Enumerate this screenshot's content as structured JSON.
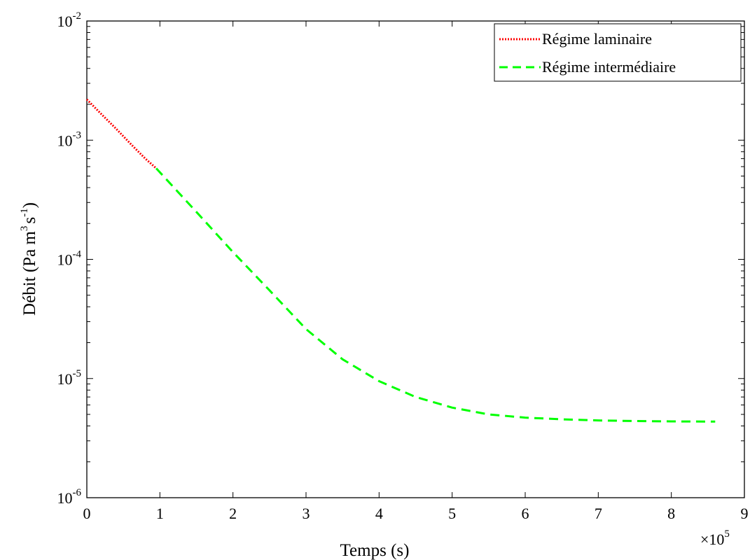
{
  "chart_data": {
    "type": "line",
    "xlabel": "Temps (s)",
    "ylabel": {
      "base": "Débit (Pa m",
      "exp1": "3",
      "mid": "s",
      "exp2": "-1",
      "end": ")"
    },
    "x_multiplier": {
      "base": "×10",
      "exp": "5"
    },
    "xlim": [
      0,
      9
    ],
    "ylim": [
      1e-06,
      0.01
    ],
    "yscale": "log",
    "grid": false,
    "legend_position": "top-right",
    "x_ticks": [
      "0",
      "1",
      "2",
      "3",
      "4",
      "5",
      "6",
      "7",
      "8",
      "9"
    ],
    "y_ticks": [
      {
        "value": 1e-06,
        "base": "10",
        "exp": "-6"
      },
      {
        "value": 1e-05,
        "base": "10",
        "exp": "-5"
      },
      {
        "value": 0.0001,
        "base": "10",
        "exp": "-4"
      },
      {
        "value": 0.001,
        "base": "10",
        "exp": "-3"
      },
      {
        "value": 0.01,
        "base": "10",
        "exp": "-2"
      }
    ],
    "series": [
      {
        "name": "Régime laminaire",
        "color": "#ff0000",
        "style": "dotted",
        "x": [
          0,
          0.2,
          0.4,
          0.6,
          0.8,
          0.95
        ],
        "y": [
          0.0022,
          0.00165,
          0.00125,
          0.00093,
          0.0007,
          0.00058
        ]
      },
      {
        "name": "Régime intermédiaire",
        "color": "#00ff00",
        "style": "dashed",
        "x": [
          0.95,
          1.5,
          2,
          2.5,
          3,
          3.5,
          4,
          4.5,
          5,
          5.5,
          6,
          6.5,
          7,
          7.5,
          8,
          8.6
        ],
        "y": [
          0.00058,
          0.00025,
          0.000115,
          5.5e-05,
          2.6e-05,
          1.45e-05,
          9.5e-06,
          7e-06,
          5.7e-06,
          5e-06,
          4.7e-06,
          4.55e-06,
          4.45e-06,
          4.4e-06,
          4.37e-06,
          4.35e-06
        ]
      }
    ]
  }
}
